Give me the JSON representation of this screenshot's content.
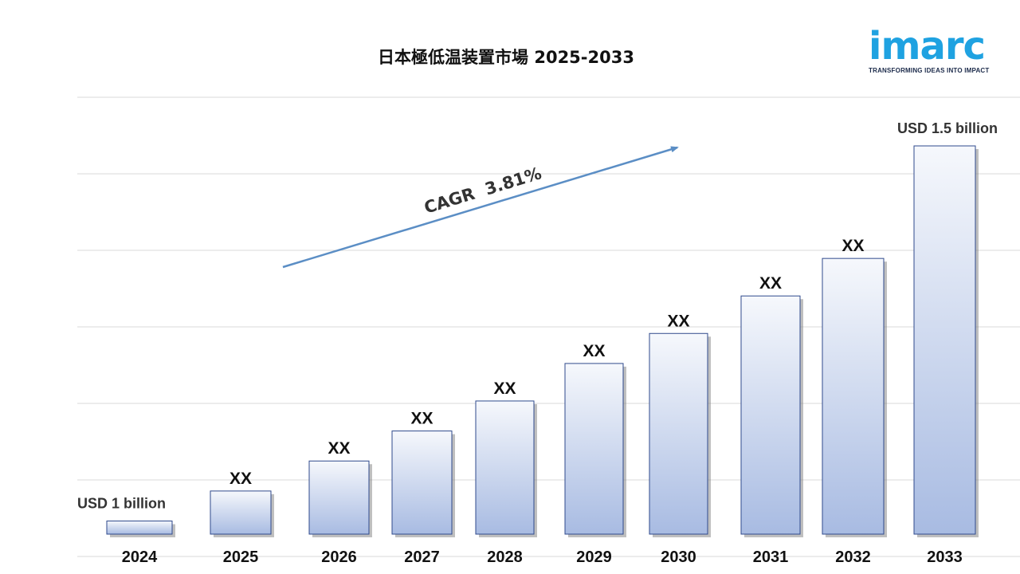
{
  "chart_data": {
    "type": "bar",
    "title": "日本極低温装置市場 2025-2033",
    "categories": [
      "2024",
      "2025",
      "2026",
      "2027",
      "2028",
      "2029",
      "2030",
      "2031",
      "2032",
      "2033"
    ],
    "values": [
      1.0,
      1.04,
      1.08,
      1.12,
      1.16,
      1.21,
      1.25,
      1.3,
      1.35,
      1.5
    ],
    "value_labels": [
      "USD 1 billion",
      "XX",
      "XX",
      "XX",
      "XX",
      "XX",
      "XX",
      "XX",
      "XX",
      "USD 1.5 billion"
    ],
    "annotation": "CAGR  3.81%",
    "xlabel": "",
    "ylabel": "",
    "grid": true,
    "colors": {
      "bar_top": "#f6f8fc",
      "bar_bottom": "#a8bbe2",
      "bar_border": "#2f4a8c",
      "arrow": "#5b8ec5",
      "grid": "#d9d9d9"
    }
  },
  "logo": {
    "wordmark": "imarc",
    "tagline": "TRANSFORMING IDEAS INTO IMPACT",
    "color": "#1fa2e1"
  }
}
